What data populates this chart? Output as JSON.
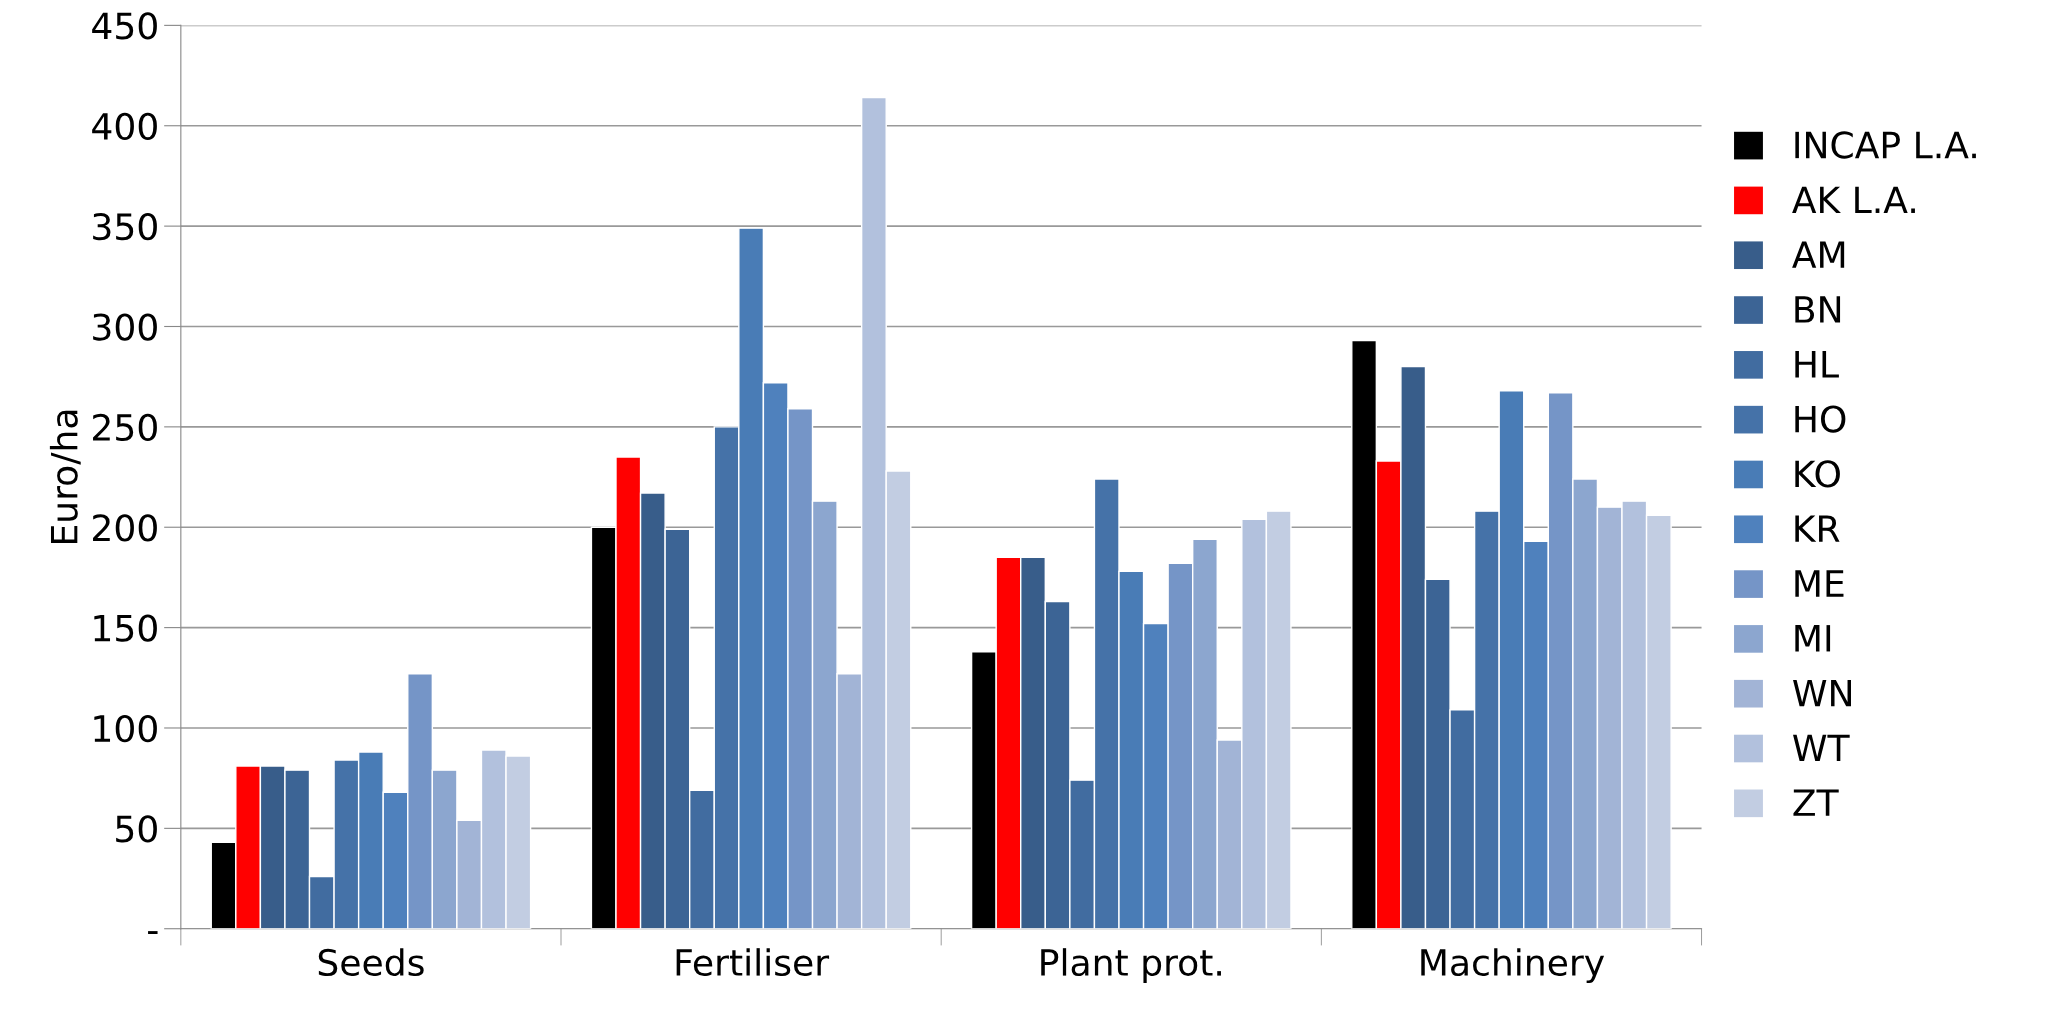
{
  "chart_data": {
    "type": "bar",
    "ylabel": "Euro/ha",
    "categories": [
      "Seeds",
      "Fertiliser",
      "Plant prot.",
      "Machinery"
    ],
    "series": [
      {
        "name": "INCAP L.A.",
        "color": "#000000",
        "values": [
          43,
          200,
          138,
          293
        ]
      },
      {
        "name": "AK L.A.",
        "color": "#ff0000",
        "values": [
          81,
          235,
          185,
          233
        ]
      },
      {
        "name": "AM",
        "color": "#385d8a",
        "values": [
          81,
          217,
          185,
          280
        ]
      },
      {
        "name": "BN",
        "color": "#3c6495",
        "values": [
          79,
          199,
          163,
          174
        ]
      },
      {
        "name": "HL",
        "color": "#416ca0",
        "values": [
          26,
          69,
          74,
          109
        ]
      },
      {
        "name": "HO",
        "color": "#4572a8",
        "values": [
          84,
          250,
          224,
          208
        ]
      },
      {
        "name": "KO",
        "color": "#497cb6",
        "values": [
          88,
          349,
          178,
          268
        ]
      },
      {
        "name": "KR",
        "color": "#4f81bd",
        "values": [
          68,
          272,
          152,
          193
        ]
      },
      {
        "name": "ME",
        "color": "#7595c7",
        "values": [
          127,
          259,
          182,
          267
        ]
      },
      {
        "name": "MI",
        "color": "#8ca6cf",
        "values": [
          79,
          213,
          194,
          224
        ]
      },
      {
        "name": "WN",
        "color": "#a2b4d6",
        "values": [
          54,
          127,
          94,
          210
        ]
      },
      {
        "name": "WT",
        "color": "#b2c1dd",
        "values": [
          89,
          414,
          204,
          213
        ]
      },
      {
        "name": "ZT",
        "color": "#c2cde2",
        "values": [
          86,
          228,
          208,
          206
        ]
      }
    ],
    "ylim": [
      0,
      450
    ],
    "yticks": [
      {
        "value": 0,
        "label": "-"
      },
      50,
      100,
      150,
      200,
      250,
      300,
      350,
      400,
      450
    ],
    "grid": "y",
    "legend": "right"
  }
}
